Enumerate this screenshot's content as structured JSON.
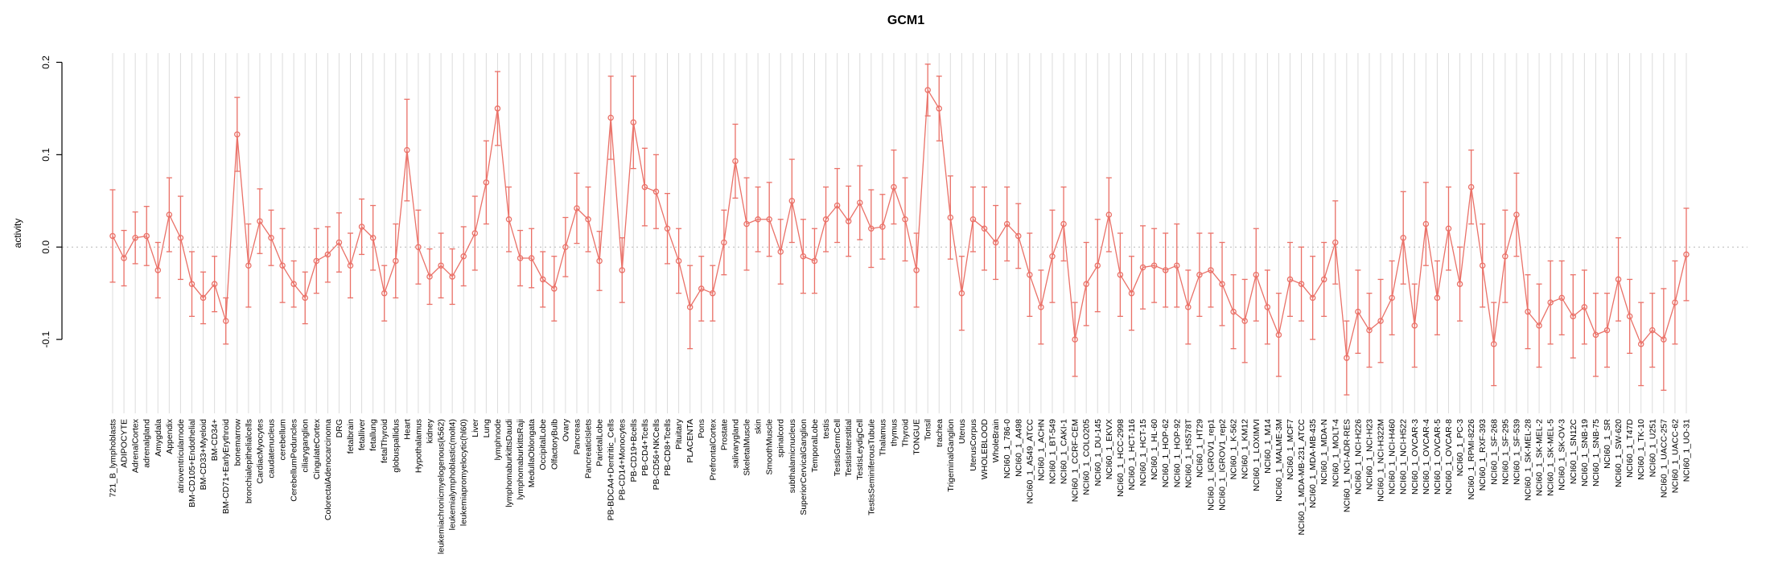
{
  "chart_data": {
    "type": "line",
    "title": "GCM1",
    "xlabel": "",
    "ylabel": "activity",
    "ylim": [
      -0.18,
      0.21
    ],
    "yticks": [
      -0.1,
      0.0,
      0.1,
      0.2
    ],
    "legend": "none",
    "grid": {
      "vertical_per_category": true,
      "color": "#dcdcdc"
    },
    "zero_line": {
      "value": 0.0,
      "style": "dotted",
      "color": "#b8b8b8"
    },
    "marker": "open-circle",
    "error_bars": true,
    "series_color": "#ea7168",
    "categories": [
      "721_B_lymphoblasts",
      "ADIPOCYTE",
      "AdrenalCortex",
      "adrenalgland",
      "Amygdala",
      "Appendix",
      "atrioventricularnode",
      "BM-CD105+Endothelial",
      "BM-CD33+Myeloid",
      "BM-CD34+",
      "BM-CD71+EarlyErythroid",
      "bonemarrow",
      "bronchialepithelialcells",
      "CardiacMyocytes",
      "caudatenucleus",
      "cerebellum",
      "CerebellumPeduncles",
      "ciliaryganglion",
      "CingulateCortex",
      "ColorectalAdenocarcinoma",
      "DRG",
      "fetalbrain",
      "fetalliver",
      "fetallung",
      "fetalThyroid",
      "globuspallidus",
      "Heart",
      "Hypothalamus",
      "kidney",
      "leukemiachronicmyelogenous(k562)",
      "leukemialymphoblastic(molt4)",
      "leukemiapromyelocytic(hl60)",
      "Liver",
      "Lung",
      "lymphnode",
      "lymphomaburkittsDaudi",
      "lymphomaburkittsRaji",
      "MedullaOblongata",
      "OccipitalLobe",
      "OlfactoryBulb",
      "Ovary",
      "Pancreas",
      "PancreaticIslets",
      "ParietalLobe",
      "PB-BDCA4+Dentritic_Cells",
      "PB-CD14+Monocytes",
      "PB-CD19+Bcells",
      "PB-CD4+Tcells",
      "PB-CD56+NKCells",
      "PB-CD8+Tcells",
      "Pituitary",
      "PLACENTA",
      "Pons",
      "PrefrontalCortex",
      "Prostate",
      "salivarygland",
      "SkeletalMuscle",
      "skin",
      "SmoothMuscle",
      "spinalcord",
      "subthalamicnucleus",
      "SuperiorCervicalGanglion",
      "TemporalLobe",
      "testis",
      "TestisGermCell",
      "TestisInterstitial",
      "TestisLeydigCell",
      "TestisSeminiferousTubule",
      "Thalamus",
      "thymus",
      "Thyroid",
      "TONGUE",
      "Tonsil",
      "trachea",
      "TrigeminalGanglion",
      "Uterus",
      "UterusCorpus",
      "WHOLEBLOOD",
      "WholeBrain",
      "NCI60_1_786-0",
      "NCI60_1_A498",
      "NCI60_1_A549_ATCC",
      "NCI60_1_ACHN",
      "NCI60_1_BT-549",
      "NCI60_1_CAKI-1",
      "NCI60_1_CCRF-CEM",
      "NCI60_1_COLO205",
      "NCI60_1_DU-145",
      "NCI60_1_EKVX",
      "NCI60_1_HCC-2998",
      "NCI60_1_HCT-116",
      "NCI60_1_HCT-15",
      "NCI60_1_HL-60",
      "NCI60_1_HOP-62",
      "NCI60_1_HOP-92",
      "NCI60_1_HS578T",
      "NCI60_1_HT29",
      "NCI60_1_IGROV1_rep1",
      "NCI60_1_IGROV1_rep2",
      "NCI60_1_K-562",
      "NCI60_1_KM12",
      "NCI60_1_LOXIMVI",
      "NCI60_1_M14",
      "NCI60_1_MALME-3M",
      "NCI60_1_MCF7",
      "NCI60_1_MDA-MB-231_ATCC",
      "NCI60_1_MDA-MB-435",
      "NCI60_1_MDA-N",
      "NCI60_1_MOLT-4",
      "NCI60_1_NCI-ADR-RES",
      "NCI60_1_NCI-H226",
      "NCI60_1_NCI-H23",
      "NCI60_1_NCI-H322M",
      "NCI60_1_NCI-H460",
      "NCI60_1_NCI-H522",
      "NCI60_1_OVCAR-3",
      "NCI60_1_OVCAR-4",
      "NCI60_1_OVCAR-5",
      "NCI60_1_OVCAR-8",
      "NCI60_1_PC-3",
      "NCI60_1_RPMI-8226",
      "NCI60_1_RXF-393",
      "NCI60_1_SF-268",
      "NCI60_1_SF-295",
      "NCI60_1_SF-539",
      "NCI60_1_SK-MEL-28",
      "NCI60_1_SK-MEL-2",
      "NCI60_1_SK-MEL-5",
      "NCI60_1_SK-OV-3",
      "NCI60_1_SN12C",
      "NCI60_1_SNB-19",
      "NCI60_1_SNB-75",
      "NCI60_1_SR",
      "NCI60_1_SW-620",
      "NCI60_1_T47D",
      "NCI60_1_TK-10",
      "NCI60_1_U251",
      "NCI60_1_UACC-257",
      "NCI60_1_UACC-62",
      "NCI60_1_UO-31"
    ],
    "values": [
      0.012,
      -0.012,
      0.01,
      0.012,
      -0.025,
      0.035,
      0.01,
      -0.04,
      -0.055,
      -0.04,
      -0.08,
      0.122,
      -0.02,
      0.028,
      0.01,
      -0.02,
      -0.04,
      -0.055,
      -0.015,
      -0.008,
      0.005,
      -0.02,
      0.022,
      0.01,
      -0.05,
      -0.015,
      0.105,
      0.0,
      -0.032,
      -0.02,
      -0.032,
      -0.01,
      0.015,
      0.07,
      0.15,
      0.03,
      -0.012,
      -0.012,
      -0.035,
      -0.045,
      0.0,
      0.042,
      0.03,
      -0.015,
      0.14,
      -0.025,
      0.135,
      0.065,
      0.06,
      0.02,
      -0.015,
      -0.065,
      -0.045,
      -0.05,
      0.005,
      0.093,
      0.025,
      0.03,
      0.03,
      -0.005,
      0.05,
      -0.01,
      -0.015,
      0.03,
      0.045,
      0.028,
      0.048,
      0.02,
      0.022,
      0.065,
      0.03,
      -0.025,
      0.17,
      0.15,
      0.032,
      -0.05,
      0.03,
      0.02,
      0.005,
      0.025,
      0.012,
      -0.03,
      -0.065,
      -0.01,
      0.025,
      -0.1,
      -0.04,
      -0.02,
      0.035,
      -0.03,
      -0.05,
      -0.022,
      -0.02,
      -0.025,
      -0.02,
      -0.065,
      -0.03,
      -0.025,
      -0.04,
      -0.07,
      -0.08,
      -0.03,
      -0.065,
      -0.095,
      -0.035,
      -0.04,
      -0.055,
      -0.035,
      0.005,
      -0.12,
      -0.07,
      -0.09,
      -0.08,
      -0.055,
      0.01,
      -0.085,
      0.025,
      -0.055,
      0.02,
      -0.04,
      0.065,
      -0.02,
      -0.105,
      -0.01,
      0.035,
      -0.07,
      -0.085,
      -0.06,
      -0.055,
      -0.075,
      -0.065,
      -0.095,
      -0.09,
      -0.035,
      -0.075,
      -0.105,
      -0.09,
      -0.1,
      -0.06,
      -0.008
    ],
    "errors": [
      0.05,
      0.03,
      0.028,
      0.032,
      0.03,
      0.04,
      0.045,
      0.035,
      0.028,
      0.03,
      0.025,
      0.04,
      0.045,
      0.035,
      0.03,
      0.04,
      0.025,
      0.028,
      0.035,
      0.03,
      0.032,
      0.035,
      0.03,
      0.035,
      0.03,
      0.04,
      0.055,
      0.04,
      0.03,
      0.035,
      0.03,
      0.032,
      0.04,
      0.045,
      0.04,
      0.035,
      0.03,
      0.032,
      0.03,
      0.035,
      0.032,
      0.038,
      0.035,
      0.032,
      0.045,
      0.035,
      0.05,
      0.042,
      0.04,
      0.038,
      0.035,
      0.045,
      0.035,
      0.03,
      0.035,
      0.04,
      0.05,
      0.035,
      0.04,
      0.035,
      0.045,
      0.04,
      0.035,
      0.035,
      0.04,
      0.038,
      0.04,
      0.042,
      0.035,
      0.04,
      0.045,
      0.04,
      0.028,
      0.035,
      0.045,
      0.04,
      0.035,
      0.045,
      0.04,
      0.04,
      0.035,
      0.045,
      0.04,
      0.05,
      0.04,
      0.04,
      0.045,
      0.05,
      0.04,
      0.045,
      0.04,
      0.045,
      0.04,
      0.04,
      0.045,
      0.04,
      0.045,
      0.04,
      0.045,
      0.04,
      0.045,
      0.05,
      0.04,
      0.045,
      0.04,
      0.04,
      0.045,
      0.04,
      0.045,
      0.04,
      0.045,
      0.04,
      0.045,
      0.04,
      0.05,
      0.045,
      0.045,
      0.04,
      0.045,
      0.04,
      0.04,
      0.045,
      0.045,
      0.05,
      0.045,
      0.04,
      0.045,
      0.045,
      0.04,
      0.045,
      0.04,
      0.045,
      0.04,
      0.045,
      0.04,
      0.045,
      0.04,
      0.055,
      0.045,
      0.05
    ]
  }
}
